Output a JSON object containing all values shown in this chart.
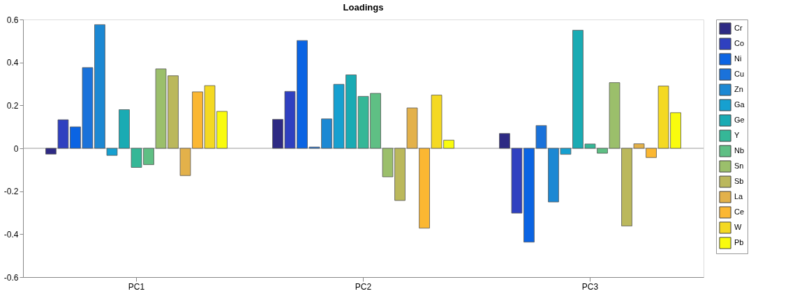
{
  "chart_data": {
    "type": "bar",
    "title": "Loadings",
    "categories": [
      "PC1",
      "PC2",
      "PC3"
    ],
    "series": [
      {
        "name": "Cr",
        "color": "#2e2a84",
        "values": [
          -0.027,
          0.135,
          0.069
        ]
      },
      {
        "name": "Co",
        "color": "#2f40c0",
        "values": [
          0.133,
          0.265,
          -0.302
        ]
      },
      {
        "name": "Ni",
        "color": "#0b64e3",
        "values": [
          0.1,
          0.502,
          -0.437
        ]
      },
      {
        "name": "Cu",
        "color": "#1a72da",
        "values": [
          0.376,
          0.006,
          0.106
        ]
      },
      {
        "name": "Zn",
        "color": "#1c88d3",
        "values": [
          0.576,
          0.137,
          -0.25
        ]
      },
      {
        "name": "Ga",
        "color": "#16a0d0",
        "values": [
          -0.033,
          0.298,
          -0.028
        ]
      },
      {
        "name": "Ge",
        "color": "#1aabb3",
        "values": [
          0.18,
          0.342,
          0.55
        ]
      },
      {
        "name": "Y",
        "color": "#35b797",
        "values": [
          -0.089,
          0.242,
          0.02
        ]
      },
      {
        "name": "Nb",
        "color": "#5fbf84",
        "values": [
          -0.076,
          0.256,
          -0.023
        ]
      },
      {
        "name": "Sn",
        "color": "#9bbf6b",
        "values": [
          0.37,
          -0.133,
          0.306
        ]
      },
      {
        "name": "Sb",
        "color": "#bbb85c",
        "values": [
          0.338,
          -0.243,
          -0.362
        ]
      },
      {
        "name": "La",
        "color": "#e3b14a",
        "values": [
          -0.127,
          0.188,
          0.021
        ]
      },
      {
        "name": "Ce",
        "color": "#fbb732",
        "values": [
          0.263,
          -0.372,
          -0.043
        ]
      },
      {
        "name": "W",
        "color": "#f4d922",
        "values": [
          0.292,
          0.248,
          0.29
        ]
      },
      {
        "name": "Pb",
        "color": "#f9fb0e",
        "values": [
          0.172,
          0.038,
          0.166
        ]
      }
    ],
    "ylim": [
      -0.6,
      0.6
    ],
    "yticks": [
      -0.6,
      -0.4,
      -0.2,
      0,
      0.2,
      0.4,
      0.6
    ],
    "ref_lines": [
      {
        "axis": "y",
        "value": 0,
        "color": "#999999"
      }
    ],
    "grid": false,
    "legend": "right"
  }
}
